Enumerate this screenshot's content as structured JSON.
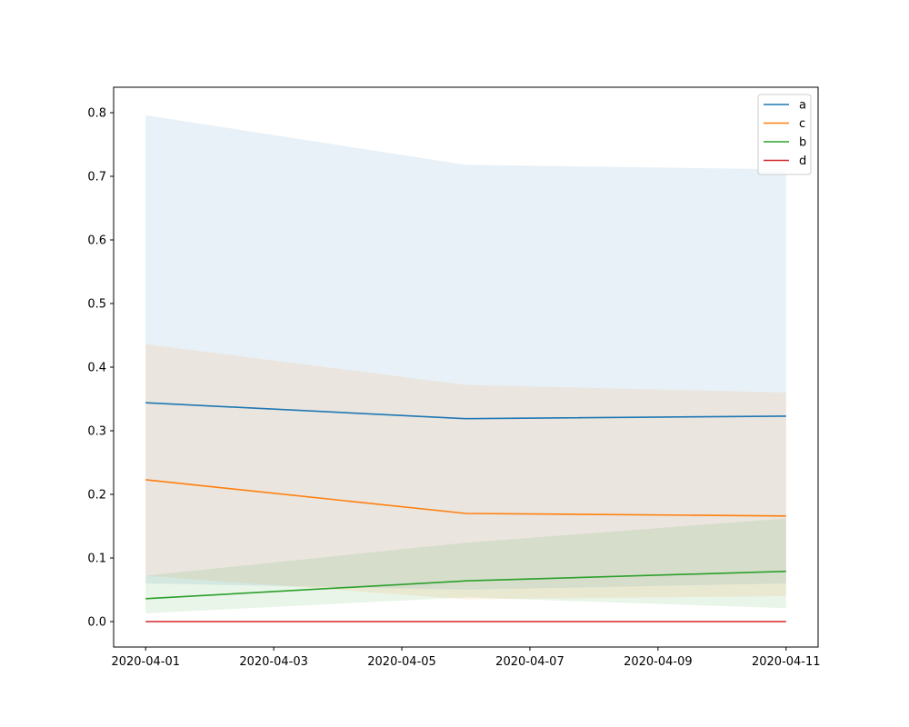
{
  "chart_data": {
    "type": "line",
    "title": "",
    "xlabel": "",
    "ylabel": "",
    "x": [
      "2020-04-01",
      "2020-04-06",
      "2020-04-11"
    ],
    "xlim": [
      "2020-03-31T12:00",
      "2020-04-11T12:00"
    ],
    "ylim": [
      -0.04,
      0.84
    ],
    "xticks": [
      "2020-04-01",
      "2020-04-03",
      "2020-04-05",
      "2020-04-07",
      "2020-04-09",
      "2020-04-11"
    ],
    "yticks": [
      "0.0",
      "0.1",
      "0.2",
      "0.3",
      "0.4",
      "0.5",
      "0.6",
      "0.7",
      "0.8"
    ],
    "grid": false,
    "legend_position": "top-right",
    "series": [
      {
        "name": "a",
        "color": "#1f77b4",
        "values": [
          0.344,
          0.319,
          0.323
        ],
        "band_low": [
          0.06,
          0.05,
          0.06
        ],
        "band_high": [
          0.796,
          0.718,
          0.711
        ]
      },
      {
        "name": "c",
        "color": "#ff7f0e",
        "values": [
          0.223,
          0.17,
          0.166
        ],
        "band_low": [
          0.072,
          0.035,
          0.04
        ],
        "band_high": [
          0.436,
          0.372,
          0.36
        ]
      },
      {
        "name": "b",
        "color": "#2ca02c",
        "values": [
          0.036,
          0.064,
          0.079
        ],
        "band_low": [
          0.013,
          0.038,
          0.021
        ],
        "band_high": [
          0.072,
          0.124,
          0.162
        ]
      },
      {
        "name": "d",
        "color": "#d62728",
        "values": [
          0.0,
          0.0,
          0.0
        ],
        "band_low": [
          0.0,
          0.0,
          0.0
        ],
        "band_high": [
          0.0,
          0.0,
          0.0
        ]
      }
    ]
  }
}
